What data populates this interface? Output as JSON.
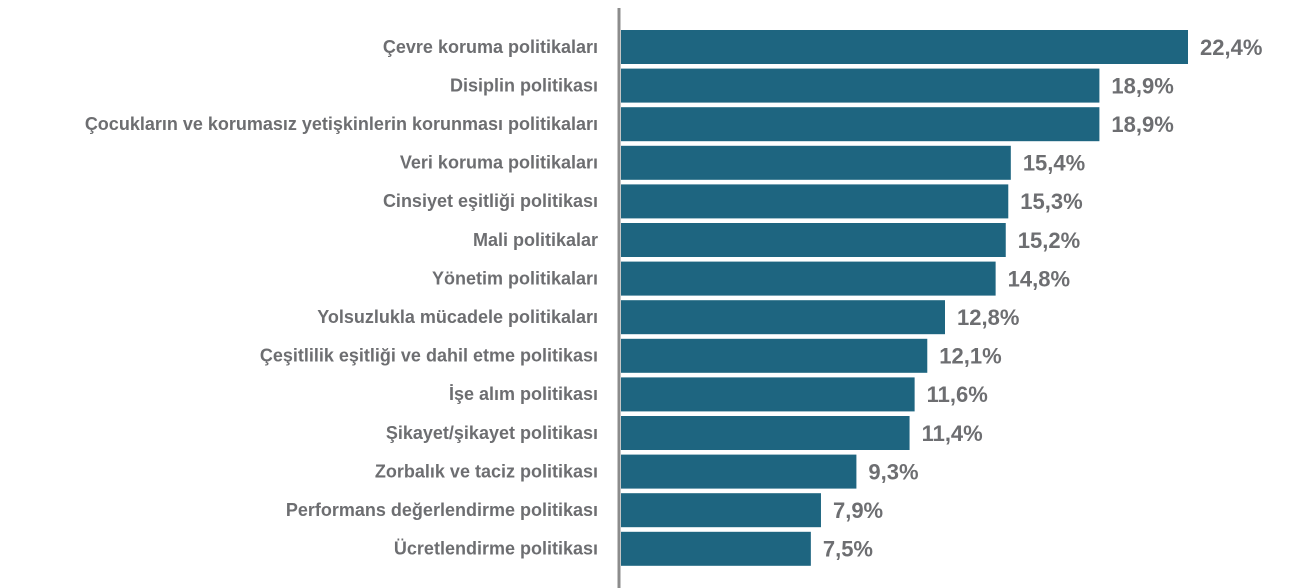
{
  "chart_data": {
    "type": "bar",
    "orientation": "horizontal",
    "color": "#1e6580",
    "categories": [
      "Çevre koruma politikaları",
      "Disiplin politikası",
      "Çocukların ve korumasız yetişkinlerin korunması politikaları",
      "Veri koruma politikaları",
      "Cinsiyet eşitliği politikası",
      "Mali politikalar",
      "Yönetim politikaları",
      "Yolsuzlukla mücadele politikaları",
      "Çeşitlilik eşitliği ve dahil etme politikası",
      "İşe alım politikası",
      "Şikayet/şikayet politikası",
      "Zorbalık ve taciz politikası",
      "Performans değerlendirme politikası",
      "Ücretlendirme politikası"
    ],
    "values": [
      22.4,
      18.9,
      18.9,
      15.4,
      15.3,
      15.2,
      14.8,
      12.8,
      12.1,
      11.6,
      11.4,
      9.3,
      7.9,
      7.5
    ],
    "value_labels": [
      "22,4%",
      "18,9%",
      "18,9%",
      "15,4%",
      "15,3%",
      "15,2%",
      "14,8%",
      "12,8%",
      "12,1%",
      "11,6%",
      "11,4%",
      "9,3%",
      "7,9%",
      "7,5%"
    ]
  }
}
